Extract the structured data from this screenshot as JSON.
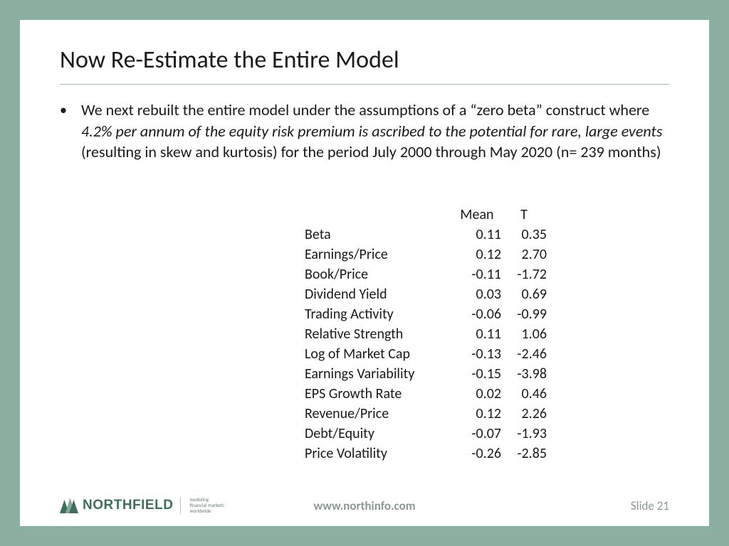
{
  "colors": {
    "frame_bg": "#8bb0a1",
    "slide_bg": "#ffffff",
    "text": "#1a1a1a",
    "muted": "#8a9a93",
    "hr": "#a9b6b0",
    "logo_dark": "#3f6e5b",
    "logo_light": "#83a898"
  },
  "title": "Now Re-Estimate the Entire Model",
  "bullet": {
    "pre": "We next rebuilt the entire model under the assumptions of a “zero beta” construct where ",
    "italic": "4.2% per annum of the equity risk premium is ascribed to the potential for rare, large events",
    "post": " (resulting in skew and kurtosis) for the period July 2000 through May 2020 (n= 239 months)"
  },
  "table": {
    "headers": {
      "mean": "Mean",
      "t": "T"
    },
    "rows": [
      {
        "label": "Beta",
        "mean": "0.11",
        "t": "0.35"
      },
      {
        "label": "Earnings/Price",
        "mean": "0.12",
        "t": "2.70"
      },
      {
        "label": "Book/Price",
        "mean": "-0.11",
        "t": "-1.72"
      },
      {
        "label": "Dividend Yield",
        "mean": "0.03",
        "t": "0.69"
      },
      {
        "label": "Trading Activity",
        "mean": "-0.06",
        "t": "-0.99"
      },
      {
        "label": "Relative Strength",
        "mean": "0.11",
        "t": "1.06"
      },
      {
        "label": "Log of Market Cap",
        "mean": "-0.13",
        "t": "-2.46"
      },
      {
        "label": "Earnings Variability",
        "mean": "-0.15",
        "t": "-3.98"
      },
      {
        "label": "EPS Growth Rate",
        "mean": "0.02",
        "t": "0.46"
      },
      {
        "label": "Revenue/Price",
        "mean": "0.12",
        "t": "2.26"
      },
      {
        "label": "Debt/Equity",
        "mean": "-0.07",
        "t": "-1.93"
      },
      {
        "label": "Price Volatility",
        "mean": "-0.26",
        "t": "-2.85"
      }
    ]
  },
  "footer": {
    "logo_text": "NORTHFIELD",
    "tagline_lines": [
      "modeling",
      "financial markets",
      "worldwide"
    ],
    "url": "www.northinfo.com",
    "slide_label": "Slide 21"
  }
}
